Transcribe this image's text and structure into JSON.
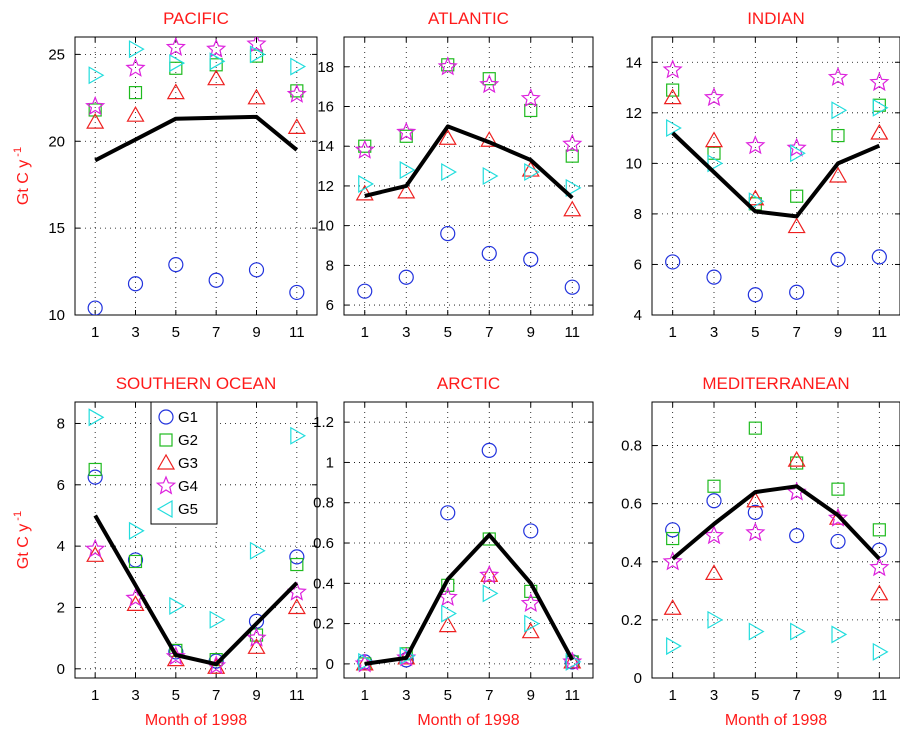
{
  "chart_data": [
    {
      "type": "scatter",
      "title": "PACIFIC",
      "xlabel": "",
      "ylabel": "Gt C y",
      "ylabel_superscript": "-1",
      "x": [
        1,
        3,
        5,
        7,
        9,
        11
      ],
      "xlim": [
        0,
        12
      ],
      "ylim": [
        10,
        26
      ],
      "xticks": [
        1,
        3,
        5,
        7,
        9,
        11
      ],
      "yticks": [
        10,
        15,
        20,
        25
      ],
      "grid": true,
      "series": [
        {
          "name": "G1",
          "values": [
            10.4,
            11.8,
            12.9,
            12.0,
            12.6,
            11.3
          ]
        },
        {
          "name": "G2",
          "values": [
            21.8,
            22.8,
            24.2,
            24.4,
            24.9,
            22.9
          ]
        },
        {
          "name": "G3",
          "values": [
            21.1,
            21.5,
            22.8,
            23.6,
            22.5,
            20.8
          ]
        },
        {
          "name": "G4",
          "values": [
            22.0,
            24.2,
            25.4,
            25.3,
            25.6,
            22.7
          ]
        },
        {
          "name": "G5",
          "values": [
            23.8,
            25.3,
            24.5,
            24.6,
            25.0,
            24.3
          ]
        }
      ],
      "mean": [
        18.9,
        null,
        21.3,
        null,
        21.4,
        19.5
      ]
    },
    {
      "type": "scatter",
      "title": "ATLANTIC",
      "xlabel": "",
      "ylabel": "",
      "x": [
        1,
        3,
        5,
        7,
        9,
        11
      ],
      "xlim": [
        0,
        12
      ],
      "ylim": [
        5.5,
        19.5
      ],
      "xticks": [
        1,
        3,
        5,
        7,
        9,
        11
      ],
      "yticks": [
        6,
        8,
        10,
        12,
        14,
        16,
        18
      ],
      "grid": true,
      "series": [
        {
          "name": "G1",
          "values": [
            6.7,
            7.4,
            9.6,
            8.6,
            8.3,
            6.9
          ]
        },
        {
          "name": "G2",
          "values": [
            14.0,
            14.5,
            18.1,
            17.4,
            15.8,
            13.5
          ]
        },
        {
          "name": "G3",
          "values": [
            11.6,
            11.7,
            14.4,
            14.3,
            12.8,
            10.8
          ]
        },
        {
          "name": "G4",
          "values": [
            13.8,
            14.7,
            18.0,
            17.1,
            16.4,
            14.1
          ]
        },
        {
          "name": "G5",
          "values": [
            12.1,
            12.8,
            12.7,
            12.5,
            12.7,
            11.9
          ]
        }
      ],
      "mean": [
        11.5,
        12.0,
        15.0,
        14.2,
        13.3,
        11.4
      ]
    },
    {
      "type": "scatter",
      "title": "INDIAN",
      "xlabel": "",
      "ylabel": "",
      "x": [
        1,
        3,
        5,
        7,
        9,
        11
      ],
      "xlim": [
        0,
        12
      ],
      "ylim": [
        4,
        15
      ],
      "xticks": [
        1,
        3,
        5,
        7,
        9,
        11
      ],
      "yticks": [
        4,
        6,
        8,
        10,
        12,
        14
      ],
      "grid": true,
      "series": [
        {
          "name": "G1",
          "values": [
            6.1,
            5.5,
            4.8,
            4.9,
            6.2,
            6.3
          ]
        },
        {
          "name": "G2",
          "values": [
            12.9,
            10.4,
            8.4,
            8.7,
            11.1,
            12.3
          ]
        },
        {
          "name": "G3",
          "values": [
            12.6,
            10.9,
            8.6,
            7.5,
            9.5,
            11.2
          ]
        },
        {
          "name": "G4",
          "values": [
            13.7,
            12.6,
            10.7,
            10.6,
            13.4,
            13.2
          ]
        },
        {
          "name": "G5",
          "values": [
            11.4,
            10.0,
            8.5,
            10.4,
            12.1,
            12.2
          ]
        }
      ],
      "mean": [
        11.2,
        null,
        8.1,
        7.9,
        10.0,
        10.7
      ]
    },
    {
      "type": "scatter",
      "title": "SOUTHERN OCEAN",
      "xlabel": "Month of 1998",
      "ylabel": "Gt C y",
      "ylabel_superscript": "-1",
      "x": [
        1,
        3,
        5,
        7,
        9,
        11
      ],
      "xlim": [
        0,
        12
      ],
      "ylim": [
        -0.3,
        8.7
      ],
      "xticks": [
        1,
        3,
        5,
        7,
        9,
        11
      ],
      "yticks": [
        0,
        2,
        4,
        6,
        8
      ],
      "grid": true,
      "legend": "top-center",
      "series": [
        {
          "name": "G1",
          "values": [
            6.25,
            3.55,
            0.55,
            0.25,
            1.55,
            3.65
          ]
        },
        {
          "name": "G2",
          "values": [
            6.5,
            3.5,
            0.6,
            0.3,
            1.1,
            3.4
          ]
        },
        {
          "name": "G3",
          "values": [
            3.7,
            2.1,
            0.3,
            0.05,
            0.7,
            2.0
          ]
        },
        {
          "name": "G4",
          "values": [
            3.9,
            2.3,
            0.4,
            0.1,
            1.0,
            2.5
          ]
        },
        {
          "name": "G5",
          "values": [
            8.2,
            4.5,
            2.05,
            1.6,
            3.85,
            7.6
          ]
        }
      ],
      "mean": [
        5.0,
        null,
        0.45,
        0.15,
        null,
        2.8
      ]
    },
    {
      "type": "scatter",
      "title": "ARCTIC",
      "xlabel": "Month of 1998",
      "ylabel": "",
      "x": [
        1,
        3,
        5,
        7,
        9,
        11
      ],
      "xlim": [
        0,
        12
      ],
      "ylim": [
        -0.07,
        1.3
      ],
      "xticks": [
        1,
        3,
        5,
        7,
        9,
        11
      ],
      "yticks": [
        0,
        0.2,
        0.4,
        0.6,
        0.8,
        1,
        1.2
      ],
      "ytick_labels": [
        "0",
        "0.2",
        "0.4",
        "0.6",
        "0.8",
        "1",
        "1.2"
      ],
      "grid": true,
      "series": [
        {
          "name": "G1",
          "values": [
            0.01,
            0.02,
            0.75,
            1.06,
            0.66,
            0.01
          ]
        },
        {
          "name": "G2",
          "values": [
            0.0,
            0.05,
            0.39,
            0.62,
            0.36,
            0.01
          ]
        },
        {
          "name": "G3",
          "values": [
            0.0,
            0.03,
            0.19,
            0.44,
            0.16,
            0.01
          ]
        },
        {
          "name": "G4",
          "values": [
            0.0,
            0.03,
            0.33,
            0.44,
            0.3,
            0.01
          ]
        },
        {
          "name": "G5",
          "values": [
            0.01,
            0.04,
            0.25,
            0.35,
            0.2,
            0.01
          ]
        }
      ],
      "mean": [
        0.0,
        0.03,
        0.42,
        0.64,
        0.4,
        0.02
      ]
    },
    {
      "type": "scatter",
      "title": "MEDITERRANEAN",
      "xlabel": "Month of 1998",
      "ylabel": "",
      "x": [
        1,
        3,
        5,
        7,
        9,
        11
      ],
      "xlim": [
        0,
        12
      ],
      "ylim": [
        0,
        0.95
      ],
      "xticks": [
        1,
        3,
        5,
        7,
        9,
        11
      ],
      "yticks": [
        0,
        0.2,
        0.4,
        0.6,
        0.8
      ],
      "ytick_labels": [
        "0",
        "0.2",
        "0.4",
        "0.6",
        "0.8"
      ],
      "grid": true,
      "series": [
        {
          "name": "G1",
          "values": [
            0.51,
            0.61,
            0.57,
            0.49,
            0.47,
            0.44
          ]
        },
        {
          "name": "G2",
          "values": [
            0.48,
            0.66,
            0.86,
            0.74,
            0.65,
            0.51
          ]
        },
        {
          "name": "G3",
          "values": [
            0.24,
            0.36,
            0.61,
            0.75,
            0.55,
            0.29
          ]
        },
        {
          "name": "G4",
          "values": [
            0.4,
            0.49,
            0.5,
            0.64,
            0.55,
            0.38
          ]
        },
        {
          "name": "G5",
          "values": [
            0.11,
            0.2,
            0.16,
            0.16,
            0.15,
            0.09
          ]
        }
      ],
      "mean": [
        0.41,
        0.53,
        0.64,
        0.66,
        0.56,
        0.41
      ]
    }
  ],
  "legend": {
    "entries": [
      "G1",
      "G2",
      "G3",
      "G4",
      "G5"
    ]
  },
  "colors": {
    "G1": "#2233dd",
    "G2": "#1fbb1f",
    "G3": "#ee2020",
    "G4": "#dd22dd",
    "G5": "#22dddd",
    "mean": "#000000",
    "title": "#ff1a1a",
    "axis_label": "#ff1a1a"
  },
  "markers": {
    "G1": "circle",
    "G2": "square",
    "G3": "triangle-up",
    "G4": "star",
    "G5": "triangle-right"
  }
}
